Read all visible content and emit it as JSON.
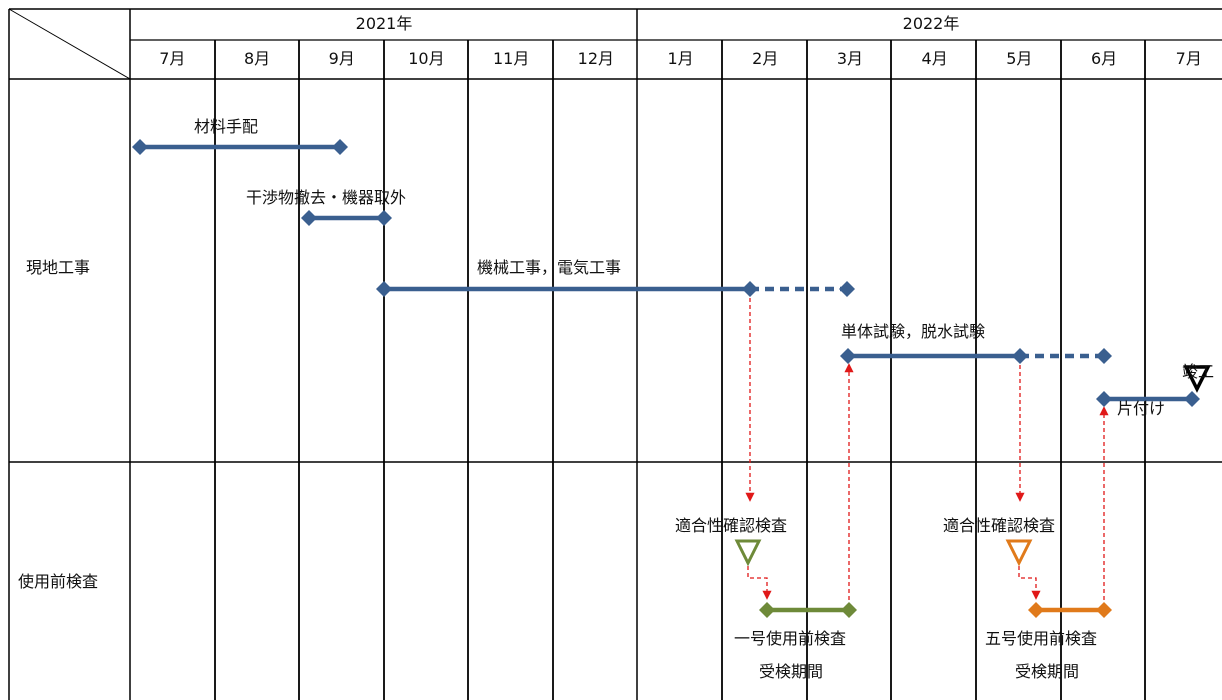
{
  "header": {
    "years": [
      "2021年",
      "2022年"
    ],
    "months": [
      "7月",
      "8月",
      "9月",
      "10月",
      "11月",
      "12月",
      "1月",
      "2月",
      "3月",
      "4月",
      "5月",
      "6月",
      "7月"
    ]
  },
  "rows": {
    "site_work": "現地工事",
    "pre_use_inspection": "使用前検査"
  },
  "tasks": {
    "materials": "材料手配",
    "removal": "干渉物撤去・機器取外",
    "mech_elec": "機械工事，電気工事",
    "unit_test": "単体試験，脱水試験",
    "cleanup": "片付け",
    "completion": "竣工",
    "conformity_1": "適合性確認検査",
    "conformity_2": "適合性確認検査",
    "insp_1_title": "一号使用前検査",
    "insp_1_period": "受検期間",
    "insp_5_title": "五号使用前検査",
    "insp_5_period": "受検期間"
  },
  "colors": {
    "blue": "#3a5f8f",
    "green": "#6e8a39",
    "orange": "#e07a1b",
    "red": "#e01818",
    "grid": "#000000"
  }
}
